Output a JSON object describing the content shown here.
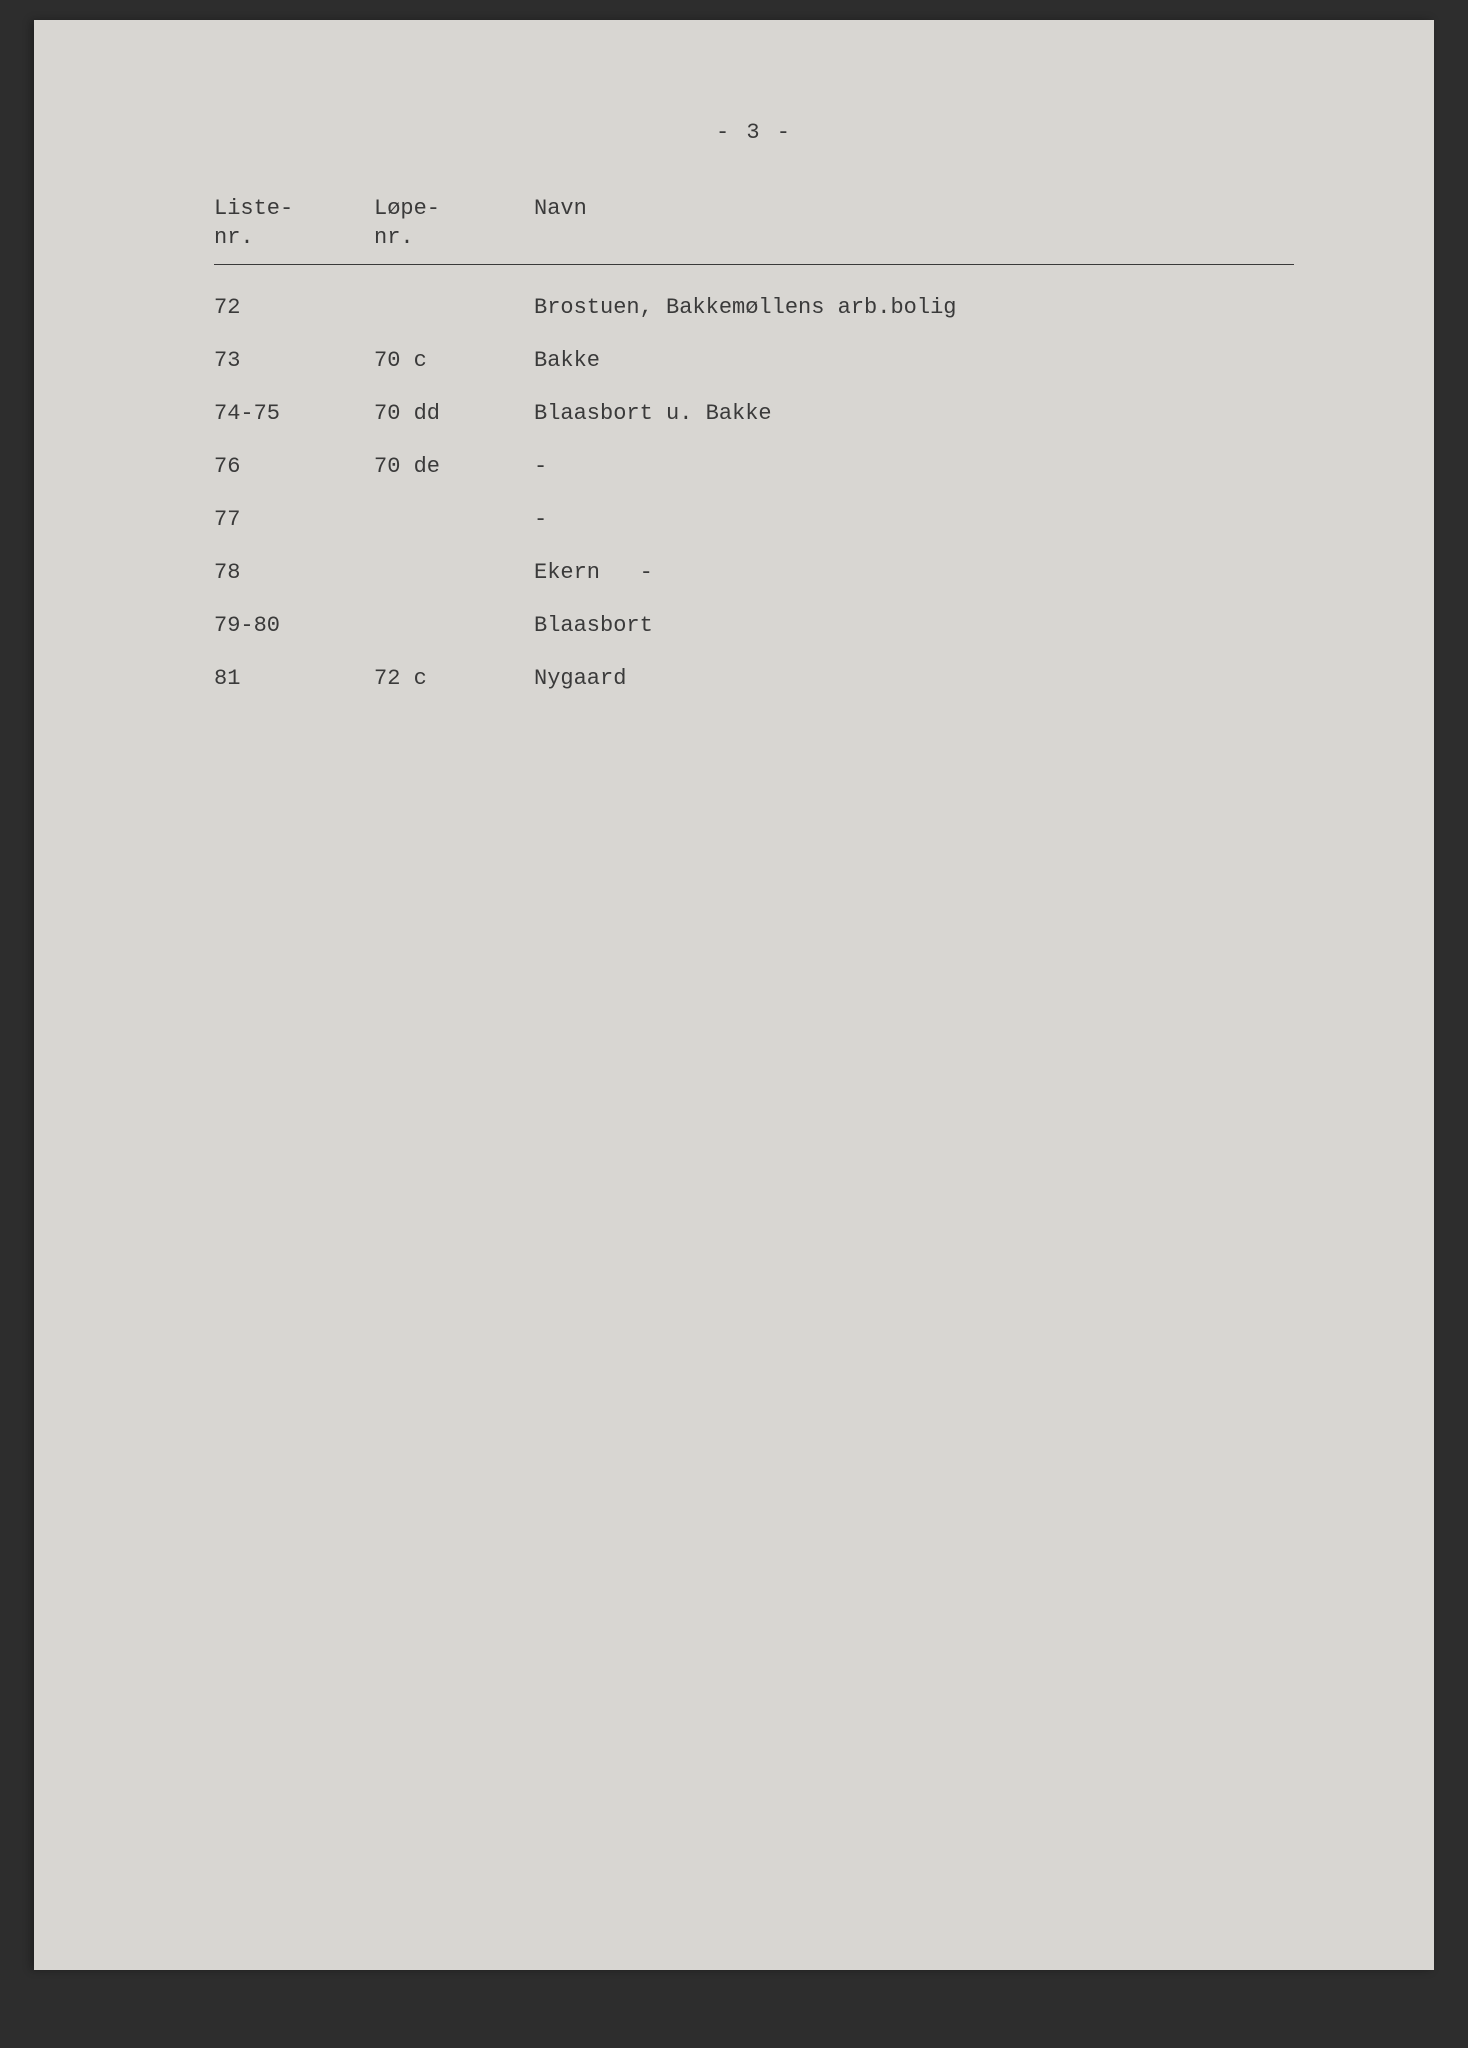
{
  "page": {
    "number": "- 3 -",
    "background_color": "#d8d6d2",
    "text_color": "#3a3a3a",
    "border_color": "#3a3a3a",
    "font_family": "Courier New",
    "font_size_pt": 16
  },
  "table": {
    "headers": {
      "col1": "Liste-\nnr.",
      "col2": "Løpe-\nnr.",
      "col3": "Navn"
    },
    "rows": [
      {
        "liste_nr": "72",
        "lope_nr": "",
        "navn": "Brostuen, Bakkemøllens arb.bolig"
      },
      {
        "liste_nr": "73",
        "lope_nr": "70 c",
        "navn": "Bakke"
      },
      {
        "liste_nr": "74-75",
        "lope_nr": "70 dd",
        "navn": "Blaasbort u. Bakke"
      },
      {
        "liste_nr": "76",
        "lope_nr": "70 de",
        "navn": "-"
      },
      {
        "liste_nr": "77",
        "lope_nr": "",
        "navn": "-"
      },
      {
        "liste_nr": "78",
        "lope_nr": "",
        "navn": "Ekern   -"
      },
      {
        "liste_nr": "79-80",
        "lope_nr": "",
        "navn": "Blaasbort"
      },
      {
        "liste_nr": "81",
        "lope_nr": "72 c",
        "navn": "Nygaard"
      }
    ]
  }
}
